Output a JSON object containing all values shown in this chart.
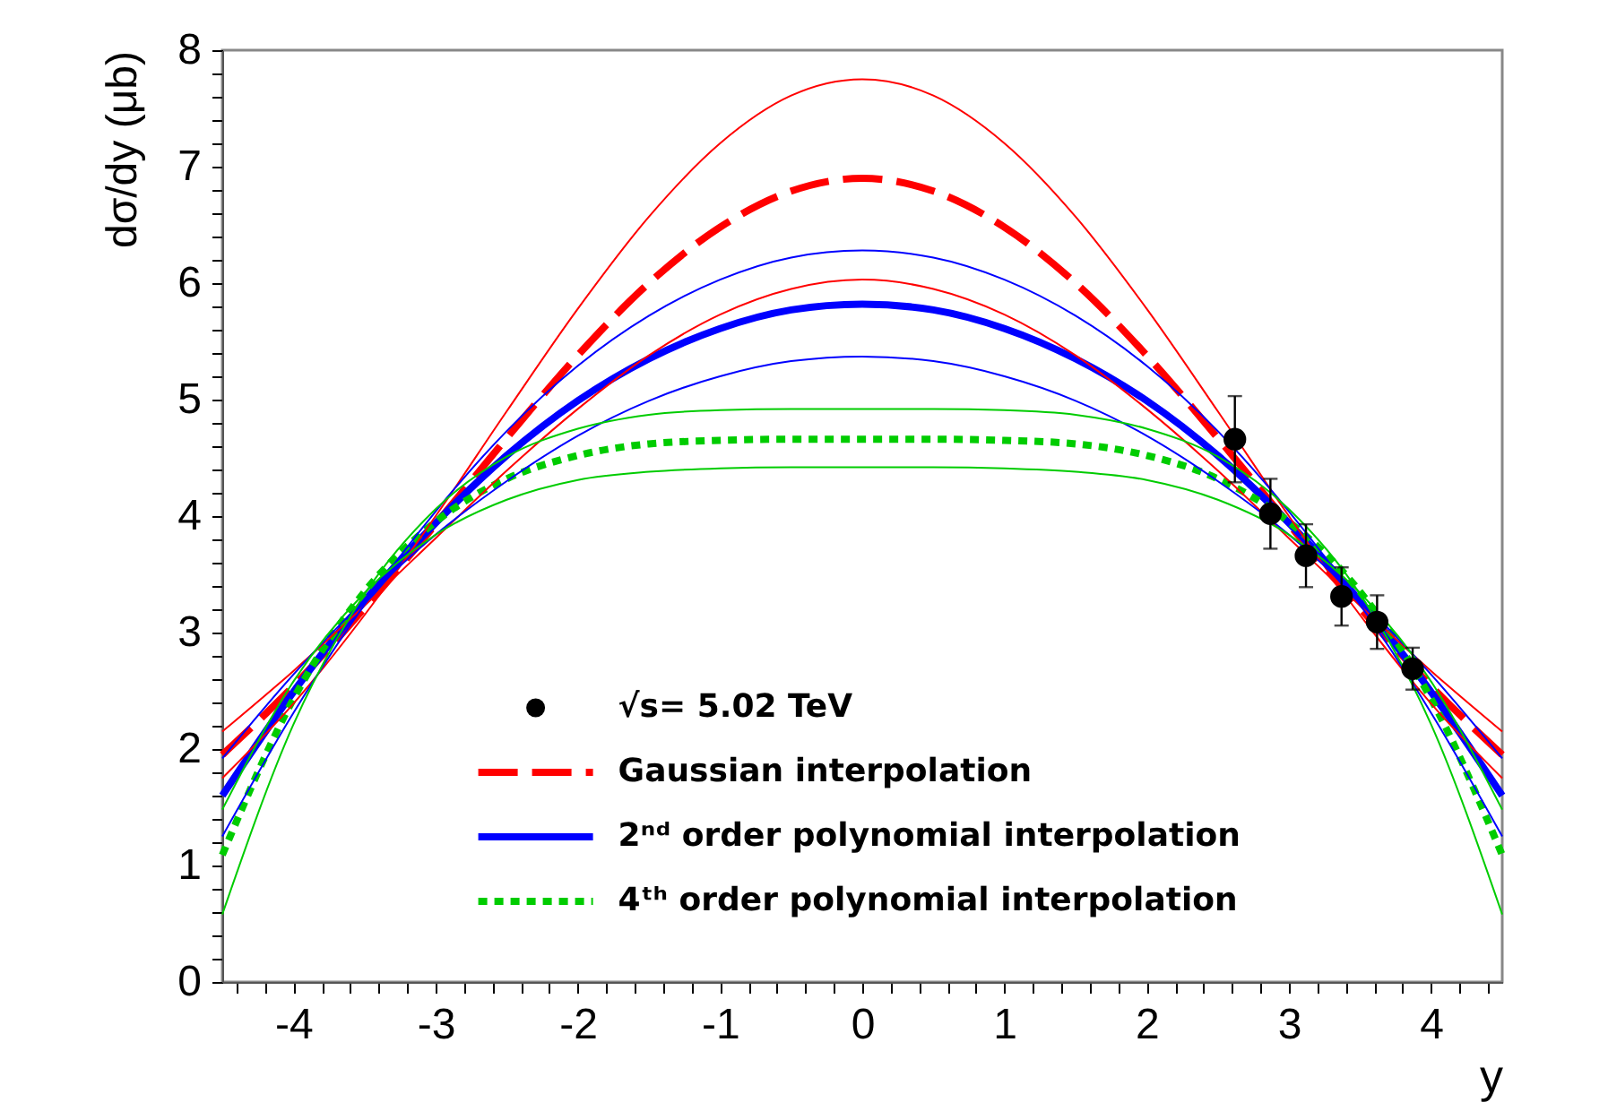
{
  "chart_data": {
    "type": "line",
    "xlabel": "y",
    "ylabel": "dσ/dy (μb)",
    "xlim": [
      -4.5,
      4.5
    ],
    "ylim": [
      0,
      8
    ],
    "xticks": [
      {
        "value": -4.4,
        "label": null
      },
      {
        "value": -4.2,
        "label": null
      },
      -4,
      {
        "value": -3.8,
        "label": null
      },
      {
        "value": -3.6,
        "label": null
      },
      {
        "value": -3.4,
        "label": null
      },
      {
        "value": -3.2,
        "label": null
      },
      -3,
      {
        "value": -2.8,
        "label": null
      },
      {
        "value": -2.6,
        "label": null
      },
      {
        "value": -2.4,
        "label": null
      },
      {
        "value": -2.2,
        "label": null
      },
      -2,
      {
        "value": -1.8,
        "label": null
      },
      {
        "value": -1.6,
        "label": null
      },
      {
        "value": -1.4,
        "label": null
      },
      {
        "value": -1.2,
        "label": null
      },
      -1,
      {
        "value": -0.8,
        "label": null
      },
      {
        "value": -0.6,
        "label": null
      },
      {
        "value": -0.4,
        "label": null
      },
      {
        "value": -0.2,
        "label": null
      },
      0,
      {
        "value": 0.2,
        "label": null
      },
      {
        "value": 0.4,
        "label": null
      },
      {
        "value": 0.6,
        "label": null
      },
      {
        "value": 0.8,
        "label": null
      },
      1,
      {
        "value": 1.2,
        "label": null
      },
      {
        "value": 1.4,
        "label": null
      },
      {
        "value": 1.6,
        "label": null
      },
      {
        "value": 1.8,
        "label": null
      },
      2,
      {
        "value": 2.2,
        "label": null
      },
      {
        "value": 2.4,
        "label": null
      },
      {
        "value": 2.6,
        "label": null
      },
      {
        "value": 2.8,
        "label": null
      },
      3,
      {
        "value": 3.2,
        "label": null
      },
      {
        "value": 3.4,
        "label": null
      },
      {
        "value": 3.6,
        "label": null
      },
      {
        "value": 3.8,
        "label": null
      },
      4,
      {
        "value": 4.2,
        "label": null
      },
      {
        "value": 4.4,
        "label": null
      }
    ],
    "yticks": [
      0,
      {
        "value": 0.2,
        "label": null
      },
      {
        "value": 0.4,
        "label": null
      },
      {
        "value": 0.6,
        "label": null
      },
      {
        "value": 0.8,
        "label": null
      },
      1,
      {
        "value": 1.2,
        "label": null
      },
      {
        "value": 1.4,
        "label": null
      },
      {
        "value": 1.6,
        "label": null
      },
      {
        "value": 1.8,
        "label": null
      },
      2,
      {
        "value": 2.2,
        "label": null
      },
      {
        "value": 2.4,
        "label": null
      },
      {
        "value": 2.6,
        "label": null
      },
      {
        "value": 2.8,
        "label": null
      },
      3,
      {
        "value": 3.2,
        "label": null
      },
      {
        "value": 3.4,
        "label": null
      },
      {
        "value": 3.6,
        "label": null
      },
      {
        "value": 3.8,
        "label": null
      },
      4,
      {
        "value": 4.2,
        "label": null
      },
      {
        "value": 4.4,
        "label": null
      },
      {
        "value": 4.6,
        "label": null
      },
      {
        "value": 4.8,
        "label": null
      },
      5,
      {
        "value": 5.2,
        "label": null
      },
      {
        "value": 5.4,
        "label": null
      },
      {
        "value": 5.6,
        "label": null
      },
      {
        "value": 5.8,
        "label": null
      },
      6,
      {
        "value": 6.2,
        "label": null
      },
      {
        "value": 6.4,
        "label": null
      },
      {
        "value": 6.6,
        "label": null
      },
      {
        "value": 6.8,
        "label": null
      },
      7,
      {
        "value": 7.2,
        "label": null
      },
      {
        "value": 7.4,
        "label": null
      },
      {
        "value": 7.6,
        "label": null
      },
      {
        "value": 7.8,
        "label": null
      },
      8
    ],
    "grid": false,
    "legend": "bottom left",
    "x": [
      -4.5,
      -4,
      -3.5,
      -3,
      -2.5,
      -2,
      -1.5,
      -1,
      -0.5,
      0,
      0.5,
      1,
      1.5,
      2,
      2.5,
      3,
      3.5,
      4,
      4.5
    ],
    "series": [
      {
        "name": "√s= 5.02 TeV",
        "type": "scatter",
        "marker": "circle",
        "color": "#000000",
        "x": [
          2.62,
          2.87,
          3.12,
          3.37,
          3.62,
          3.87
        ],
        "values": [
          4.66,
          4.02,
          3.66,
          3.31,
          3.09,
          2.69
        ],
        "errors": [
          0.37,
          0.3,
          0.27,
          0.25,
          0.23,
          0.18
        ]
      },
      {
        "name": "Gaussian interpolation",
        "type": "line",
        "line_style": "dashed",
        "color": "#ff0000",
        "values": [
          1.95,
          2.54,
          3.21,
          3.93,
          4.67,
          5.38,
          6.0,
          6.48,
          6.79,
          6.9,
          6.79,
          6.48,
          6.0,
          5.38,
          4.67,
          3.93,
          3.21,
          2.54,
          1.95
        ]
      },
      {
        "name": "2ⁿᵈ order polynomial interpolation",
        "type": "line",
        "line_style": "solid",
        "color": "#0000ff",
        "values": [
          1.6,
          2.49,
          3.27,
          3.94,
          4.52,
          4.99,
          5.35,
          5.61,
          5.77,
          5.82,
          5.77,
          5.61,
          5.35,
          4.99,
          4.52,
          3.94,
          3.27,
          2.49,
          1.6
        ]
      },
      {
        "name": "4ᵗʰ order polynomial interpolation",
        "type": "line",
        "line_style": "dotted",
        "color": "#00cc00",
        "values": [
          1.09,
          2.43,
          3.35,
          3.95,
          4.32,
          4.52,
          4.62,
          4.65,
          4.66,
          4.66,
          4.66,
          4.65,
          4.62,
          4.52,
          4.32,
          3.95,
          3.35,
          2.43,
          1.09
        ]
      },
      {
        "line_style": "solid",
        "color": "#ff0000",
        "values": [
          2.15,
          2.67,
          3.23,
          3.81,
          4.39,
          4.92,
          5.38,
          5.73,
          5.95,
          6.03,
          5.95,
          5.73,
          5.38,
          4.92,
          4.39,
          3.81,
          3.23,
          2.67,
          2.15
        ]
      },
      {
        "line_style": "solid",
        "color": "#ff0000",
        "values": [
          1.75,
          2.39,
          3.15,
          4.0,
          4.9,
          5.78,
          6.57,
          7.2,
          7.61,
          7.75,
          7.61,
          7.2,
          6.57,
          5.78,
          4.9,
          4.0,
          3.15,
          2.39,
          1.75
        ]
      },
      {
        "line_style": "solid",
        "color": "#0000ff",
        "values": [
          1.92,
          2.64,
          3.28,
          3.84,
          4.3,
          4.69,
          4.99,
          5.2,
          5.33,
          5.37,
          5.33,
          5.2,
          4.99,
          4.69,
          4.3,
          3.84,
          3.28,
          2.64,
          1.92
        ]
      },
      {
        "line_style": "solid",
        "color": "#0000ff",
        "values": [
          1.25,
          2.31,
          3.24,
          4.04,
          4.73,
          5.29,
          5.72,
          6.03,
          6.22,
          6.28,
          6.22,
          6.03,
          5.72,
          5.29,
          4.73,
          4.04,
          3.24,
          2.31,
          1.25
        ]
      },
      {
        "line_style": "solid",
        "color": "#00cc00",
        "values": [
          1.48,
          2.58,
          3.34,
          3.84,
          4.14,
          4.31,
          4.38,
          4.41,
          4.42,
          4.42,
          4.42,
          4.41,
          4.38,
          4.31,
          4.14,
          3.84,
          3.34,
          2.58,
          1.48
        ]
      },
      {
        "line_style": "solid",
        "color": "#00cc00",
        "values": [
          0.58,
          2.21,
          3.33,
          4.06,
          4.51,
          4.75,
          4.87,
          4.91,
          4.92,
          4.92,
          4.92,
          4.91,
          4.87,
          4.75,
          4.51,
          4.06,
          3.33,
          2.21,
          0.58
        ]
      }
    ]
  }
}
